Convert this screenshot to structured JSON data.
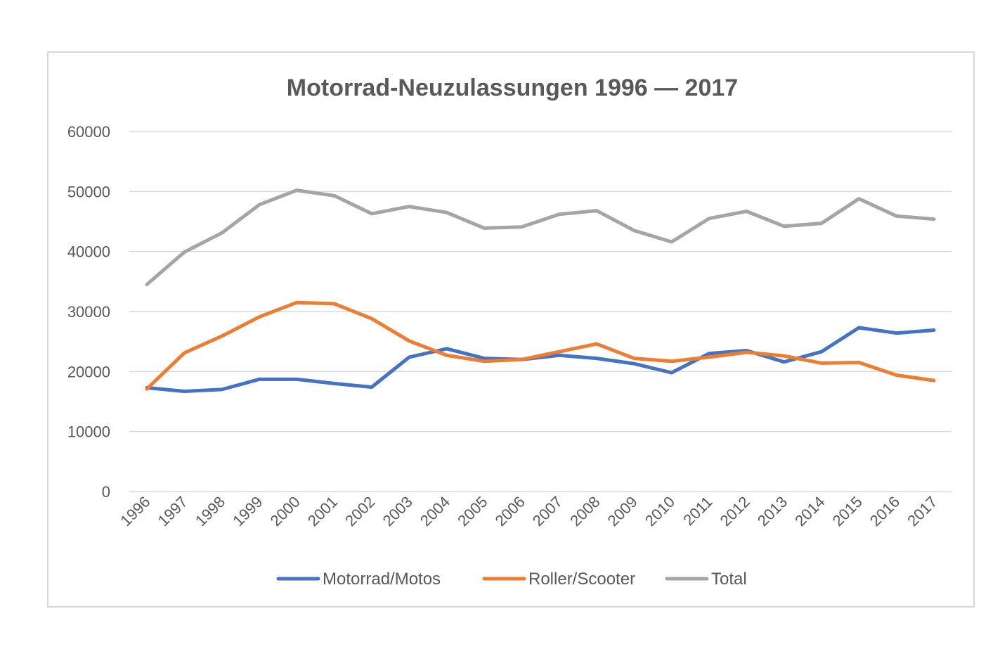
{
  "chart_data": {
    "type": "line",
    "title": "Motorrad-Neuzulassungen 1996 — 2017",
    "xlabel": "",
    "ylabel": "",
    "ylim": [
      0,
      60000
    ],
    "yticks": [
      0,
      10000,
      20000,
      30000,
      40000,
      50000,
      60000
    ],
    "grid": true,
    "legend_position": "bottom",
    "categories": [
      "1996",
      "1997",
      "1998",
      "1999",
      "2000",
      "2001",
      "2002",
      "2003",
      "2004",
      "2005",
      "2006",
      "2007",
      "2008",
      "2009",
      "2010",
      "2011",
      "2012",
      "2013",
      "2014",
      "2015",
      "2016",
      "2017"
    ],
    "series": [
      {
        "name": "Motorrad/Motos",
        "color": "#4472c4",
        "values": [
          17300,
          16700,
          17000,
          18700,
          18700,
          18000,
          17400,
          22400,
          23800,
          22200,
          22000,
          22700,
          22200,
          21300,
          19800,
          23000,
          23500,
          21600,
          23300,
          27300,
          26400,
          26900
        ]
      },
      {
        "name": "Roller/Scooter",
        "color": "#ed7d31",
        "values": [
          17100,
          23100,
          25900,
          29100,
          31500,
          31300,
          28800,
          25100,
          22700,
          21700,
          22000,
          23300,
          24600,
          22200,
          21700,
          22400,
          23200,
          22600,
          21400,
          21500,
          19400,
          18500
        ]
      },
      {
        "name": "Total",
        "color": "#a5a5a5",
        "values": [
          34500,
          39900,
          43100,
          47800,
          50200,
          49300,
          46300,
          47500,
          46500,
          43900,
          44100,
          46200,
          46800,
          43500,
          41600,
          45500,
          46700,
          44200,
          44700,
          48800,
          45900,
          45400
        ]
      }
    ]
  }
}
